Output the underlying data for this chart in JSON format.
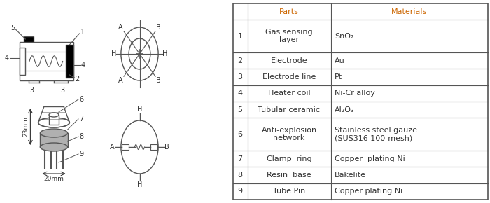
{
  "table_headers": [
    "",
    "Parts",
    "Materials"
  ],
  "table_rows": [
    [
      "1",
      "Gas sensing\nlayer",
      "SnO₂"
    ],
    [
      "2",
      "Electrode",
      "Au"
    ],
    [
      "3",
      "Electrode line",
      "Pt"
    ],
    [
      "4",
      "Heater coil",
      "Ni-Cr alloy"
    ],
    [
      "5",
      "Tubular ceramic",
      "Al₂O₃"
    ],
    [
      "6",
      "Anti-explosion\nnetwork",
      "Stainless steel gauze\n(SUS316 100-mesh)"
    ],
    [
      "7",
      "Clamp  ring",
      "Copper  plating Ni"
    ],
    [
      "8",
      "Resin  base",
      "Bakelite"
    ],
    [
      "9",
      "Tube Pin",
      "Copper plating Ni"
    ]
  ],
  "header_color": "#cc6600",
  "text_color": "#000000",
  "line_color": "#555555",
  "bg_color": "#ffffff",
  "diagram_color": "#333333",
  "gray_fill": "#b0b0b0"
}
